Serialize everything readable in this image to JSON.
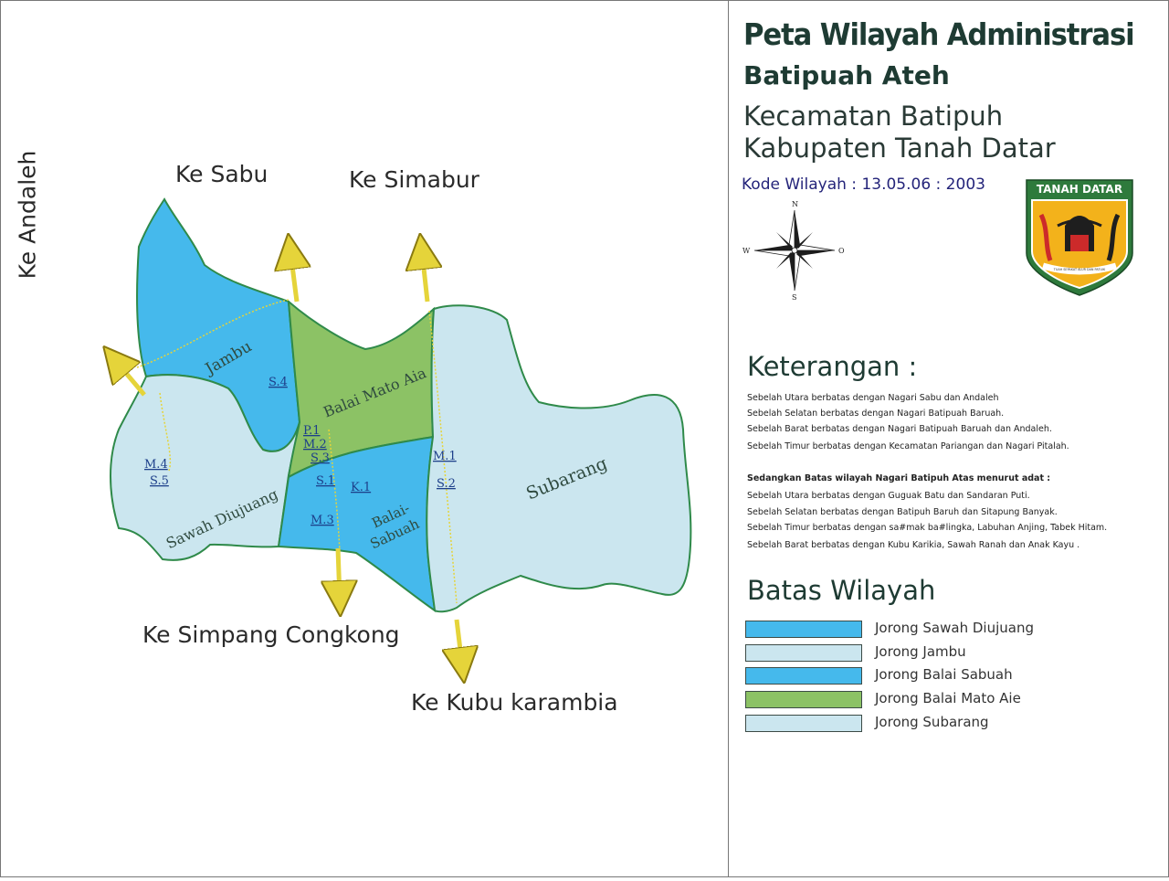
{
  "map": {
    "directions": {
      "andaleh": "Ke Andaleh",
      "sabu": "Ke Sabu",
      "simabur": "Ke Simabur",
      "simpang_congkong": "Ke Simpang Congkong",
      "kubu_karambia": "Ke Kubu karambia"
    },
    "regions": {
      "jambu": "Jambu",
      "balai_mato_aia": "Balai Mato Aia",
      "subarang": "Subarang",
      "sawah_diujuang": "Sawah Diujuang",
      "balai_sabuah_1": "Balai-",
      "balai_sabuah_2": "Sabuah"
    },
    "codes": {
      "s4": "S.4",
      "p1": "P.1",
      "m2": "M.2",
      "s3": "S.3",
      "s1": "S.1",
      "k1": "K.1",
      "m3": "M.3",
      "m4": "M.4",
      "s5": "S.5",
      "m1": "M.1",
      "s2": "S.2"
    },
    "colors": {
      "deep_blue": "#45b9ec",
      "pale_blue": "#cbe6ef",
      "green": "#8cc265",
      "border": "#2f8a4a",
      "arrow": "#e5d43a"
    }
  },
  "panel": {
    "title": "Peta Wilayah Administrasi",
    "subtitle": "Batipuah Ateh",
    "kecamatan": "Kecamatan Batipuh",
    "kabupaten": "Kabupaten Tanah Datar",
    "kode_wilayah": "Kode Wilayah : 13.05.06 : 2003",
    "compass": {
      "n": "N",
      "s": "S",
      "w": "W",
      "e": "O"
    },
    "emblem": {
      "name": "TANAH DATAR",
      "motto": "TUAH SEPAKAT ALUR DAN PATUIK"
    },
    "keterangan_title": "Keterangan :",
    "keterangan": [
      "Sebelah Utara berbatas dengan Nagari Sabu dan Andaleh",
      "Sebelah Selatan berbatas dengan Nagari Batipuah Baruah.",
      "Sebelah Barat berbatas dengan Nagari Batipuah Baruah dan Andaleh.",
      "Sebelah Timur berbatas dengan Kecamatan Pariangan dan Nagari Pitalah."
    ],
    "adat_title": "Sedangkan Batas wilayah Nagari Batipuh Atas menurut adat :",
    "adat": [
      "Sebelah Utara berbatas dengan Guguak Batu dan Sandaran Puti.",
      "Sebelah Selatan berbatas dengan Batipuh Baruh dan Sitapung Banyak.",
      "Sebelah Timur berbatas dengan sa#mak ba#lingka, Labuhan Anjing, Tabek Hitam.",
      "Sebelah Barat berbatas dengan Kubu Karikia, Sawah Ranah dan Anak Kayu ."
    ],
    "legend_title": "Batas Wilayah",
    "legend": [
      {
        "label": "Jorong Sawah Diujuang",
        "color": "#45b9ec"
      },
      {
        "label": "Jorong Jambu",
        "color": "#cbe6ef"
      },
      {
        "label": "Jorong Balai Sabuah",
        "color": "#45b9ec"
      },
      {
        "label": "Jorong Balai Mato Aie",
        "color": "#8cc265"
      },
      {
        "label": "Jorong Subarang",
        "color": "#cbe6ef"
      }
    ]
  }
}
